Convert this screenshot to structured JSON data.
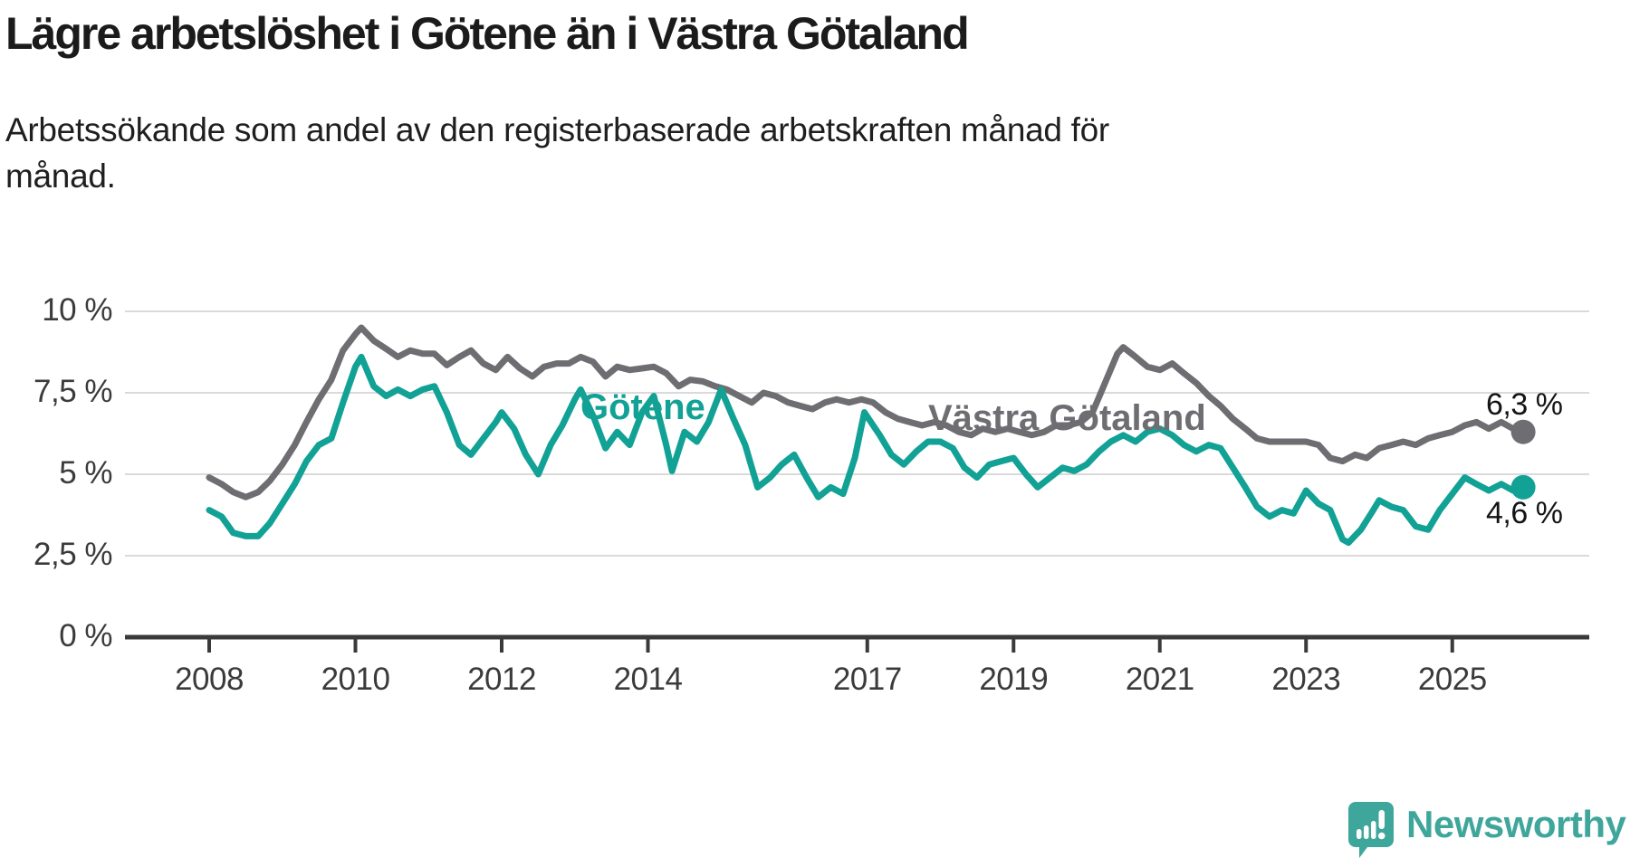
{
  "header": {
    "title": "Lägre arbetslöshet i Götene än i Västra Götaland",
    "subtitle_line1": "Arbetssökande som andel av den registerbaserade arbetskraften månad för",
    "subtitle_line2": "månad."
  },
  "chart_data": {
    "type": "line",
    "title": "Lägre arbetslöshet i Götene än i Västra Götaland",
    "subtitle": "Arbetssökande som andel av den registerbaserade arbetskraften månad för månad.",
    "unit": "%",
    "ylim": [
      0,
      10.5
    ],
    "grid": "horizontal",
    "yticks": [
      {
        "value": 0,
        "label": "0 %"
      },
      {
        "value": 2.5,
        "label": "2,5 %"
      },
      {
        "value": 5,
        "label": "5 %"
      },
      {
        "value": 7.5,
        "label": "7,5 %"
      },
      {
        "value": 10,
        "label": "10 %"
      }
    ],
    "xticks": [
      {
        "value": 2008,
        "label": "2008"
      },
      {
        "value": 2010,
        "label": "2010"
      },
      {
        "value": 2012,
        "label": "2012"
      },
      {
        "value": 2014,
        "label": "2014"
      },
      {
        "value": 2017,
        "label": "2017"
      },
      {
        "value": 2019,
        "label": "2019"
      },
      {
        "value": 2021,
        "label": "2021"
      },
      {
        "value": 2023,
        "label": "2023"
      },
      {
        "value": 2025,
        "label": "2025"
      }
    ],
    "series": [
      {
        "id": "vastra-gotaland",
        "name": "Västra Götaland",
        "color": "#6e6e72",
        "end_value": 6.3,
        "end_label": "6,3 %",
        "points": [
          [
            2008.0,
            4.9
          ],
          [
            2008.17,
            4.7
          ],
          [
            2008.33,
            4.45
          ],
          [
            2008.5,
            4.3
          ],
          [
            2008.67,
            4.45
          ],
          [
            2008.83,
            4.8
          ],
          [
            2009.0,
            5.3
          ],
          [
            2009.17,
            5.9
          ],
          [
            2009.33,
            6.6
          ],
          [
            2009.5,
            7.3
          ],
          [
            2009.67,
            7.9
          ],
          [
            2009.83,
            8.8
          ],
          [
            2010.0,
            9.3
          ],
          [
            2010.08,
            9.5
          ],
          [
            2010.25,
            9.1
          ],
          [
            2010.42,
            8.85
          ],
          [
            2010.58,
            8.6
          ],
          [
            2010.75,
            8.8
          ],
          [
            2010.92,
            8.7
          ],
          [
            2011.08,
            8.7
          ],
          [
            2011.25,
            8.35
          ],
          [
            2011.42,
            8.6
          ],
          [
            2011.58,
            8.8
          ],
          [
            2011.75,
            8.4
          ],
          [
            2011.92,
            8.2
          ],
          [
            2012.08,
            8.6
          ],
          [
            2012.25,
            8.25
          ],
          [
            2012.42,
            8.0
          ],
          [
            2012.58,
            8.3
          ],
          [
            2012.75,
            8.4
          ],
          [
            2012.92,
            8.4
          ],
          [
            2013.08,
            8.6
          ],
          [
            2013.25,
            8.45
          ],
          [
            2013.42,
            8.0
          ],
          [
            2013.58,
            8.3
          ],
          [
            2013.75,
            8.2
          ],
          [
            2013.92,
            8.25
          ],
          [
            2014.08,
            8.3
          ],
          [
            2014.25,
            8.1
          ],
          [
            2014.42,
            7.7
          ],
          [
            2014.58,
            7.9
          ],
          [
            2014.75,
            7.85
          ],
          [
            2014.92,
            7.7
          ],
          [
            2015.08,
            7.6
          ],
          [
            2015.25,
            7.4
          ],
          [
            2015.42,
            7.2
          ],
          [
            2015.58,
            7.5
          ],
          [
            2015.75,
            7.4
          ],
          [
            2015.92,
            7.2
          ],
          [
            2016.08,
            7.1
          ],
          [
            2016.25,
            7.0
          ],
          [
            2016.42,
            7.2
          ],
          [
            2016.58,
            7.3
          ],
          [
            2016.75,
            7.2
          ],
          [
            2016.92,
            7.3
          ],
          [
            2017.08,
            7.2
          ],
          [
            2017.25,
            6.9
          ],
          [
            2017.42,
            6.7
          ],
          [
            2017.58,
            6.6
          ],
          [
            2017.75,
            6.5
          ],
          [
            2017.92,
            6.6
          ],
          [
            2018.08,
            6.5
          ],
          [
            2018.25,
            6.3
          ],
          [
            2018.42,
            6.2
          ],
          [
            2018.58,
            6.4
          ],
          [
            2018.75,
            6.3
          ],
          [
            2018.92,
            6.4
          ],
          [
            2019.08,
            6.3
          ],
          [
            2019.25,
            6.2
          ],
          [
            2019.42,
            6.3
          ],
          [
            2019.58,
            6.5
          ],
          [
            2019.75,
            6.5
          ],
          [
            2019.92,
            6.6
          ],
          [
            2020.08,
            6.9
          ],
          [
            2020.25,
            7.8
          ],
          [
            2020.42,
            8.7
          ],
          [
            2020.5,
            8.9
          ],
          [
            2020.67,
            8.6
          ],
          [
            2020.83,
            8.3
          ],
          [
            2021.0,
            8.2
          ],
          [
            2021.17,
            8.4
          ],
          [
            2021.33,
            8.1
          ],
          [
            2021.5,
            7.8
          ],
          [
            2021.67,
            7.4
          ],
          [
            2021.83,
            7.1
          ],
          [
            2022.0,
            6.7
          ],
          [
            2022.17,
            6.4
          ],
          [
            2022.33,
            6.1
          ],
          [
            2022.5,
            6.0
          ],
          [
            2022.67,
            6.0
          ],
          [
            2022.83,
            6.0
          ],
          [
            2023.0,
            6.0
          ],
          [
            2023.17,
            5.9
          ],
          [
            2023.33,
            5.5
          ],
          [
            2023.5,
            5.4
          ],
          [
            2023.67,
            5.6
          ],
          [
            2023.83,
            5.5
          ],
          [
            2024.0,
            5.8
          ],
          [
            2024.17,
            5.9
          ],
          [
            2024.33,
            6.0
          ],
          [
            2024.5,
            5.9
          ],
          [
            2024.67,
            6.1
          ],
          [
            2024.83,
            6.2
          ],
          [
            2025.0,
            6.3
          ],
          [
            2025.17,
            6.5
          ],
          [
            2025.33,
            6.6
          ],
          [
            2025.5,
            6.4
          ],
          [
            2025.67,
            6.6
          ],
          [
            2025.83,
            6.4
          ],
          [
            2025.97,
            6.3
          ]
        ]
      },
      {
        "id": "gotene",
        "name": "Götene",
        "color": "#12a195",
        "end_value": 4.6,
        "end_label": "4,6 %",
        "points": [
          [
            2008.0,
            3.9
          ],
          [
            2008.17,
            3.7
          ],
          [
            2008.33,
            3.2
          ],
          [
            2008.5,
            3.1
          ],
          [
            2008.67,
            3.1
          ],
          [
            2008.83,
            3.5
          ],
          [
            2009.0,
            4.1
          ],
          [
            2009.17,
            4.7
          ],
          [
            2009.33,
            5.4
          ],
          [
            2009.5,
            5.9
          ],
          [
            2009.67,
            6.1
          ],
          [
            2009.83,
            7.2
          ],
          [
            2010.0,
            8.3
          ],
          [
            2010.08,
            8.6
          ],
          [
            2010.25,
            7.7
          ],
          [
            2010.42,
            7.4
          ],
          [
            2010.58,
            7.6
          ],
          [
            2010.75,
            7.4
          ],
          [
            2010.92,
            7.6
          ],
          [
            2011.08,
            7.7
          ],
          [
            2011.25,
            6.9
          ],
          [
            2011.42,
            5.9
          ],
          [
            2011.58,
            5.6
          ],
          [
            2011.75,
            6.1
          ],
          [
            2011.92,
            6.6
          ],
          [
            2012.0,
            6.9
          ],
          [
            2012.17,
            6.4
          ],
          [
            2012.33,
            5.6
          ],
          [
            2012.5,
            5.0
          ],
          [
            2012.67,
            5.9
          ],
          [
            2012.83,
            6.5
          ],
          [
            2013.0,
            7.3
          ],
          [
            2013.08,
            7.6
          ],
          [
            2013.25,
            6.8
          ],
          [
            2013.42,
            5.8
          ],
          [
            2013.58,
            6.3
          ],
          [
            2013.75,
            5.9
          ],
          [
            2013.92,
            6.9
          ],
          [
            2014.08,
            7.4
          ],
          [
            2014.25,
            5.9
          ],
          [
            2014.33,
            5.1
          ],
          [
            2014.5,
            6.3
          ],
          [
            2014.67,
            6.0
          ],
          [
            2014.83,
            6.6
          ],
          [
            2015.0,
            7.6
          ],
          [
            2015.17,
            6.7
          ],
          [
            2015.33,
            5.9
          ],
          [
            2015.5,
            4.6
          ],
          [
            2015.67,
            4.9
          ],
          [
            2015.83,
            5.3
          ],
          [
            2016.0,
            5.6
          ],
          [
            2016.17,
            4.9
          ],
          [
            2016.33,
            4.3
          ],
          [
            2016.5,
            4.6
          ],
          [
            2016.67,
            4.4
          ],
          [
            2016.83,
            5.5
          ],
          [
            2016.96,
            6.9
          ],
          [
            2017.17,
            6.2
          ],
          [
            2017.33,
            5.6
          ],
          [
            2017.5,
            5.3
          ],
          [
            2017.67,
            5.7
          ],
          [
            2017.83,
            6.0
          ],
          [
            2018.0,
            6.0
          ],
          [
            2018.17,
            5.8
          ],
          [
            2018.33,
            5.2
          ],
          [
            2018.5,
            4.9
          ],
          [
            2018.67,
            5.3
          ],
          [
            2018.83,
            5.4
          ],
          [
            2019.0,
            5.5
          ],
          [
            2019.17,
            5.0
          ],
          [
            2019.33,
            4.6
          ],
          [
            2019.5,
            4.9
          ],
          [
            2019.67,
            5.2
          ],
          [
            2019.83,
            5.1
          ],
          [
            2020.0,
            5.3
          ],
          [
            2020.17,
            5.7
          ],
          [
            2020.33,
            6.0
          ],
          [
            2020.5,
            6.2
          ],
          [
            2020.67,
            6.0
          ],
          [
            2020.83,
            6.3
          ],
          [
            2021.0,
            6.4
          ],
          [
            2021.17,
            6.2
          ],
          [
            2021.33,
            5.9
          ],
          [
            2021.5,
            5.7
          ],
          [
            2021.67,
            5.9
          ],
          [
            2021.83,
            5.8
          ],
          [
            2022.0,
            5.2
          ],
          [
            2022.17,
            4.6
          ],
          [
            2022.33,
            4.0
          ],
          [
            2022.5,
            3.7
          ],
          [
            2022.67,
            3.9
          ],
          [
            2022.83,
            3.8
          ],
          [
            2023.0,
            4.5
          ],
          [
            2023.17,
            4.1
          ],
          [
            2023.33,
            3.9
          ],
          [
            2023.5,
            3.0
          ],
          [
            2023.58,
            2.9
          ],
          [
            2023.75,
            3.3
          ],
          [
            2023.92,
            3.9
          ],
          [
            2024.0,
            4.2
          ],
          [
            2024.17,
            4.0
          ],
          [
            2024.33,
            3.9
          ],
          [
            2024.5,
            3.4
          ],
          [
            2024.67,
            3.3
          ],
          [
            2024.83,
            3.9
          ],
          [
            2025.0,
            4.4
          ],
          [
            2025.17,
            4.9
          ],
          [
            2025.33,
            4.7
          ],
          [
            2025.5,
            4.5
          ],
          [
            2025.67,
            4.7
          ],
          [
            2025.83,
            4.5
          ],
          [
            2025.97,
            4.6
          ]
        ]
      }
    ],
    "colors": {
      "gridline": "#dadada",
      "axis": "#3a3a3a",
      "tick_text": "#3b3b3b"
    }
  },
  "logo": {
    "name": "Newsworthy",
    "color": "#3fa69b",
    "icon": "newsworthy-speech-bubble-chart-icon"
  }
}
